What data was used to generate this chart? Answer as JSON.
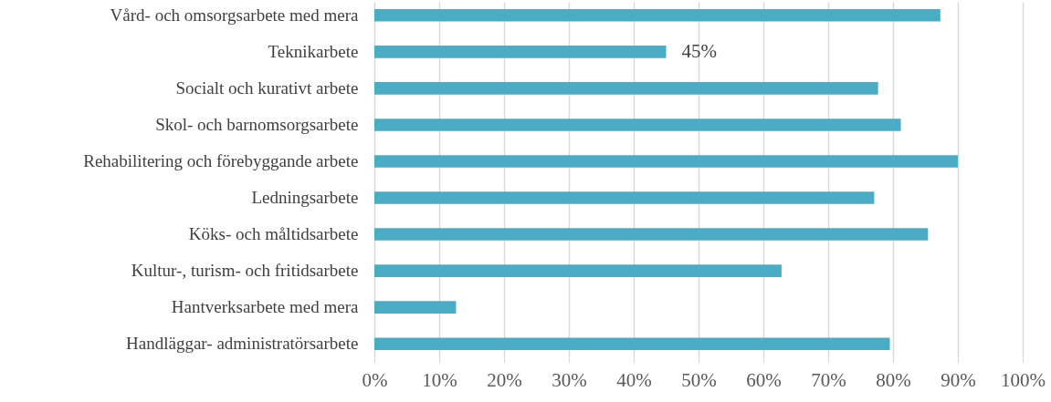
{
  "chart_data": {
    "type": "bar",
    "orientation": "horizontal",
    "categories": [
      "Vård- och omsorgsarbete med mera",
      "Teknikarbete",
      "Socialt och kurativt arbete",
      "Skol- och barnomsorgsarbete",
      "Rehabilitering och förebyggande arbete",
      "Ledningsarbete",
      "Köks- och måltidsarbete",
      "Kultur-, turism- och fritidsarbete",
      "Hantverksarbete med mera",
      "Handläggar- administratörsarbete"
    ],
    "values": [
      87.3,
      45,
      77.7,
      81.2,
      90.0,
      77.1,
      85.4,
      62.8,
      12.6,
      79.5
    ],
    "value_labels": [
      null,
      "45%",
      null,
      null,
      null,
      null,
      null,
      null,
      null,
      null
    ],
    "color": "#4bacc6",
    "xlim": [
      0,
      100
    ],
    "xticks": [
      {
        "value": 0,
        "label": "0%"
      },
      {
        "value": 10,
        "label": "10%"
      },
      {
        "value": 20,
        "label": "20%"
      },
      {
        "value": 30,
        "label": "30%"
      },
      {
        "value": 40,
        "label": "40%"
      },
      {
        "value": 50,
        "label": "50%"
      },
      {
        "value": 60,
        "label": "60%"
      },
      {
        "value": 70,
        "label": "70%"
      },
      {
        "value": 80,
        "label": "80%"
      },
      {
        "value": 90,
        "label": "90%"
      },
      {
        "value": 100,
        "label": "100%"
      }
    ],
    "grid": "x"
  }
}
